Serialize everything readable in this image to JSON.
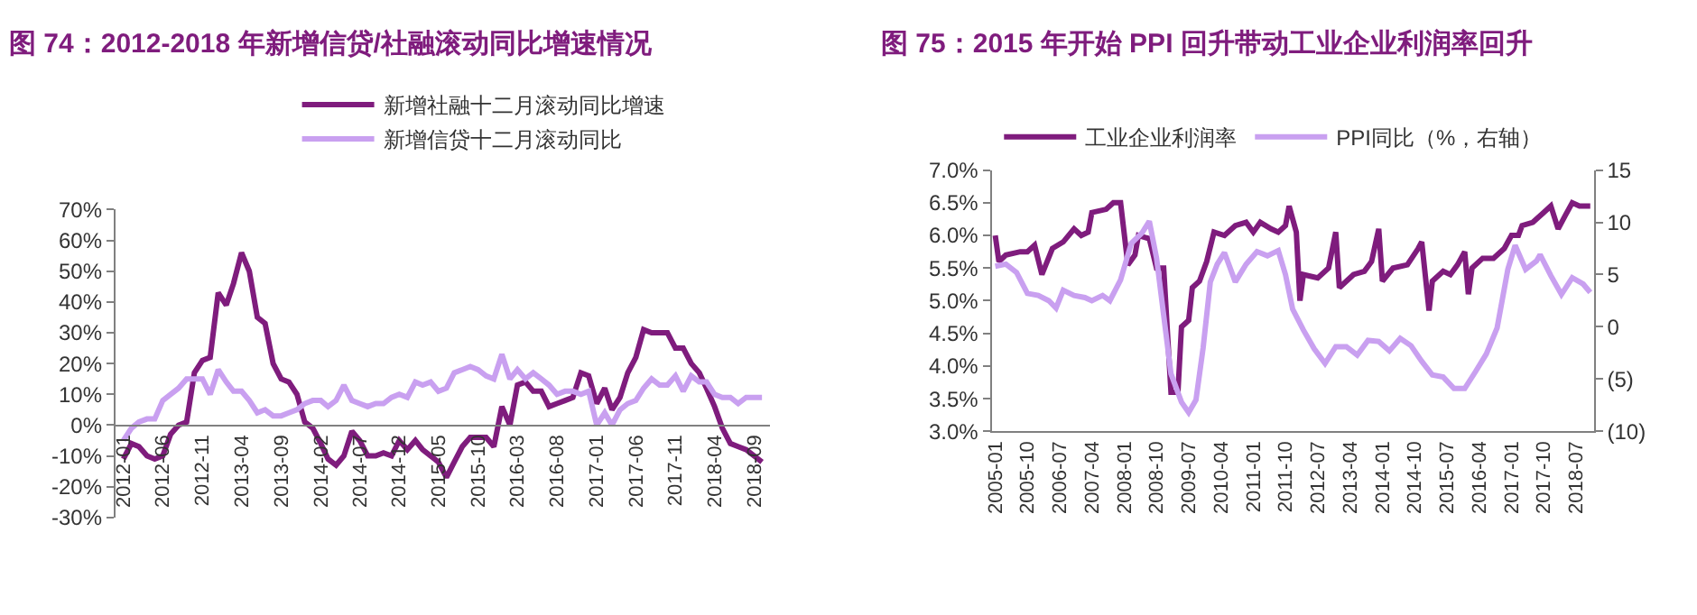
{
  "chart_data": [
    {
      "type": "line",
      "title": "图 74：2012-2018 年新增信贷/社融滚动同比增速情况",
      "legend": "top",
      "marker": "none",
      "line_style": "solid",
      "x": [
        "2012-01",
        "2012-02",
        "2012-03",
        "2012-04",
        "2012-05",
        "2012-06",
        "2012-07",
        "2012-08",
        "2012-09",
        "2012-10",
        "2012-11",
        "2012-12",
        "2013-01",
        "2013-02",
        "2013-03",
        "2013-04",
        "2013-05",
        "2013-06",
        "2013-07",
        "2013-08",
        "2013-09",
        "2013-10",
        "2013-11",
        "2013-12",
        "2014-01",
        "2014-02",
        "2014-03",
        "2014-04",
        "2014-05",
        "2014-06",
        "2014-07",
        "2014-08",
        "2014-09",
        "2014-10",
        "2014-11",
        "2014-12",
        "2015-01",
        "2015-02",
        "2015-03",
        "2015-04",
        "2015-05",
        "2015-06",
        "2015-07",
        "2015-08",
        "2015-09",
        "2015-10",
        "2015-11",
        "2015-12",
        "2016-01",
        "2016-02",
        "2016-03",
        "2016-04",
        "2016-05",
        "2016-06",
        "2016-07",
        "2016-08",
        "2016-09",
        "2016-10",
        "2016-11",
        "2016-12",
        "2017-01",
        "2017-02",
        "2017-03",
        "2017-04",
        "2017-05",
        "2017-06",
        "2017-07",
        "2017-08",
        "2017-09",
        "2017-10",
        "2017-11",
        "2017-12",
        "2018-01",
        "2018-02",
        "2018-03",
        "2018-04",
        "2018-05",
        "2018-06",
        "2018-07",
        "2018-08",
        "2018-09",
        "2018-10"
      ],
      "xlim": [
        "2011-12",
        "2018-11"
      ],
      "xticks": [
        {
          "value": "2012-01",
          "label": "2012-01"
        },
        {
          "value": "2012-06",
          "label": "2012-06"
        },
        {
          "value": "2012-11",
          "label": "2012-11"
        },
        {
          "value": "2013-04",
          "label": "2013-04"
        },
        {
          "value": "2013-09",
          "label": "2013-09"
        },
        {
          "value": "2014-02",
          "label": "2014-02"
        },
        {
          "value": "2014-07",
          "label": "2014-07"
        },
        {
          "value": "2014-12",
          "label": "2014-12"
        },
        {
          "value": "2015-05",
          "label": "2015-05"
        },
        {
          "value": "2015-10",
          "label": "2015-10"
        },
        {
          "value": "2016-03",
          "label": "2016-03"
        },
        {
          "value": "2016-08",
          "label": "2016-08"
        },
        {
          "value": "2017-01",
          "label": "2017-01"
        },
        {
          "value": "2017-06",
          "label": "2017-06"
        },
        {
          "value": "2017-11",
          "label": "2017-11"
        },
        {
          "value": "2018-04",
          "label": "2018-04"
        },
        {
          "value": "2018-09",
          "label": "2018-09"
        }
      ],
      "ylim": [
        -30,
        70
      ],
      "yticks": [
        {
          "value": -30,
          "label": "-30%"
        },
        {
          "value": -20,
          "label": "-20%"
        },
        {
          "value": -10,
          "label": "-10%"
        },
        {
          "value": 0,
          "label": "0%"
        },
        {
          "value": 10,
          "label": "10%"
        },
        {
          "value": 20,
          "label": "20%"
        },
        {
          "value": 30,
          "label": "30%"
        },
        {
          "value": 40,
          "label": "40%"
        },
        {
          "value": 50,
          "label": "50%"
        },
        {
          "value": 60,
          "label": "60%"
        },
        {
          "value": 70,
          "label": "70%"
        }
      ],
      "series": [
        {
          "name": "新增社融十二月滚动同比增速",
          "color": "#7f1c7d",
          "values": [
            -11,
            -6,
            -7,
            -10,
            -11,
            -10,
            -3,
            0,
            1,
            17,
            21,
            22,
            43,
            39,
            46,
            56,
            50,
            35,
            33,
            20,
            15,
            14,
            10,
            1,
            -1,
            -6,
            -11,
            -13,
            -10,
            -2,
            -5,
            -10,
            -10,
            -9,
            -10,
            -5,
            -8,
            -5,
            -8,
            -10,
            -12,
            -17,
            -12,
            -7,
            -4,
            -4,
            -4,
            -7,
            6,
            0,
            13,
            14,
            11,
            11,
            6,
            7,
            8,
            9,
            17,
            16,
            7,
            12,
            5,
            9,
            17,
            22,
            31,
            30,
            30,
            30,
            25,
            25,
            20,
            17,
            12,
            6,
            -1,
            -6,
            -7,
            -8,
            -10,
            -12
          ]
        },
        {
          "name": "新增信贷十二月滚动同比",
          "color": "#c9a0f0",
          "values": [
            -5,
            -1,
            1,
            2,
            2,
            8,
            10,
            12,
            15,
            15,
            15,
            10,
            18,
            14,
            11,
            11,
            8,
            4,
            5,
            3,
            3,
            4,
            5,
            7,
            8,
            8,
            6,
            8,
            13,
            8,
            7,
            6,
            7,
            7,
            9,
            10,
            9,
            14,
            13,
            14,
            11,
            12,
            17,
            18,
            19,
            18,
            16,
            15,
            23,
            15,
            18,
            15,
            17,
            15,
            13,
            10,
            11,
            11,
            10,
            11,
            0,
            4,
            0,
            5,
            7,
            8,
            12,
            15,
            13,
            13,
            16,
            11,
            16,
            14,
            14,
            10,
            9,
            9,
            7,
            9,
            9,
            9
          ]
        }
      ]
    },
    {
      "type": "line",
      "title": "图 75：2015 年开始 PPI 回升带动工业企业利润率回升",
      "legend": "top",
      "marker": "none",
      "line_style": "solid",
      "xlim": [
        "2004-12",
        "2018-12"
      ],
      "xticks": [
        {
          "value": "2005-01",
          "label": "2005-01"
        },
        {
          "value": "2005-10",
          "label": "2005-10"
        },
        {
          "value": "2006-07",
          "label": "2006-07"
        },
        {
          "value": "2007-04",
          "label": "2007-04"
        },
        {
          "value": "2008-01",
          "label": "2008-01"
        },
        {
          "value": "2008-10",
          "label": "2008-10"
        },
        {
          "value": "2009-07",
          "label": "2009-07"
        },
        {
          "value": "2010-04",
          "label": "2010-04"
        },
        {
          "value": "2011-01",
          "label": "2011-01"
        },
        {
          "value": "2011-10",
          "label": "2011-10"
        },
        {
          "value": "2012-07",
          "label": "2012-07"
        },
        {
          "value": "2013-04",
          "label": "2013-04"
        },
        {
          "value": "2014-01",
          "label": "2014-01"
        },
        {
          "value": "2014-10",
          "label": "2014-10"
        },
        {
          "value": "2015-07",
          "label": "2015-07"
        },
        {
          "value": "2016-04",
          "label": "2016-04"
        },
        {
          "value": "2017-01",
          "label": "2017-01"
        },
        {
          "value": "2017-10",
          "label": "2017-10"
        },
        {
          "value": "2018-07",
          "label": "2018-07"
        }
      ],
      "ylim": [
        3.0,
        7.0
      ],
      "yticks": [
        {
          "value": 3.0,
          "label": "3.0%"
        },
        {
          "value": 3.5,
          "label": "3.5%"
        },
        {
          "value": 4.0,
          "label": "4.0%"
        },
        {
          "value": 4.5,
          "label": "4.5%"
        },
        {
          "value": 5.0,
          "label": "5.0%"
        },
        {
          "value": 5.5,
          "label": "5.5%"
        },
        {
          "value": 6.0,
          "label": "6.0%"
        },
        {
          "value": 6.5,
          "label": "6.5%"
        },
        {
          "value": 7.0,
          "label": "7.0%"
        }
      ],
      "y2lim": [
        -10,
        15
      ],
      "y2ticks": [
        {
          "value": -10,
          "label": "(10)"
        },
        {
          "value": -5,
          "label": "(5)"
        },
        0,
        5,
        10,
        15
      ],
      "series": [
        {
          "name": "工业企业利润率",
          "color": "#7f1c7d",
          "x": [
            "2005-01",
            "2005-02",
            "2005-04",
            "2005-08",
            "2005-10",
            "2005-12",
            "2006-02",
            "2006-05",
            "2006-08",
            "2006-11",
            "2007-01",
            "2007-03",
            "2007-04",
            "2007-08",
            "2007-10",
            "2007-12",
            "2008-02",
            "2008-04",
            "2008-05",
            "2008-08",
            "2008-10",
            "2008-12",
            "2009-02",
            "2009-04",
            "2009-05",
            "2009-07",
            "2009-08",
            "2009-10",
            "2009-12",
            "2010-02",
            "2010-05",
            "2010-08",
            "2010-11",
            "2011-01",
            "2011-03",
            "2011-06",
            "2011-08",
            "2011-10",
            "2011-11",
            "2012-01",
            "2012-02",
            "2012-03",
            "2012-07",
            "2012-10",
            "2012-12",
            "2013-01",
            "2013-05",
            "2013-08",
            "2013-10",
            "2013-12",
            "2014-01",
            "2014-04",
            "2014-08",
            "2014-11",
            "2014-12",
            "2015-02",
            "2015-03",
            "2015-06",
            "2015-08",
            "2015-10",
            "2015-12",
            "2016-01",
            "2016-02",
            "2016-05",
            "2016-08",
            "2016-11",
            "2017-01",
            "2017-03",
            "2017-04",
            "2017-07",
            "2017-10",
            "2017-12",
            "2018-02",
            "2018-04",
            "2018-06",
            "2018-08",
            "2018-11"
          ],
          "values": [
            6.0,
            5.6,
            5.7,
            5.75,
            5.75,
            5.85,
            5.4,
            5.8,
            5.9,
            6.1,
            6.0,
            6.05,
            6.35,
            6.4,
            6.5,
            6.5,
            5.55,
            5.7,
            6.0,
            5.95,
            5.5,
            5.5,
            3.6,
            3.6,
            4.6,
            4.7,
            5.2,
            5.3,
            5.6,
            6.05,
            6.0,
            6.15,
            6.2,
            6.05,
            6.2,
            6.1,
            6.05,
            6.15,
            6.45,
            6.05,
            5.0,
            5.4,
            5.35,
            5.5,
            6.05,
            5.2,
            5.4,
            5.45,
            5.6,
            6.1,
            5.3,
            5.5,
            5.55,
            5.8,
            5.9,
            4.85,
            5.3,
            5.45,
            5.4,
            5.55,
            5.75,
            5.1,
            5.5,
            5.65,
            5.65,
            5.8,
            6.0,
            6.0,
            6.15,
            6.2,
            6.35,
            6.45,
            6.1,
            6.3,
            6.5,
            6.45,
            6.45
          ]
        },
        {
          "name": "PPI同比（%，右轴）",
          "color": "#c9a0f0",
          "axis": "y2",
          "x": [
            "2005-01",
            "2005-04",
            "2005-07",
            "2005-10",
            "2006-01",
            "2006-04",
            "2006-06",
            "2006-08",
            "2006-11",
            "2007-02",
            "2007-04",
            "2007-07",
            "2007-09",
            "2007-12",
            "2008-03",
            "2008-06",
            "2008-08",
            "2008-10",
            "2008-12",
            "2009-02",
            "2009-05",
            "2009-07",
            "2009-09",
            "2009-11",
            "2010-01",
            "2010-03",
            "2010-05",
            "2010-08",
            "2010-11",
            "2011-02",
            "2011-05",
            "2011-08",
            "2011-10",
            "2011-12",
            "2012-03",
            "2012-06",
            "2012-09",
            "2012-12",
            "2013-03",
            "2013-06",
            "2013-09",
            "2013-12",
            "2014-03",
            "2014-06",
            "2014-09",
            "2014-12",
            "2015-03",
            "2015-06",
            "2015-09",
            "2015-12",
            "2016-03",
            "2016-06",
            "2016-09",
            "2016-12",
            "2017-02",
            "2017-05",
            "2017-08",
            "2017-09",
            "2017-12",
            "2018-03",
            "2018-06",
            "2018-09",
            "2018-11"
          ],
          "values": [
            5.8,
            6,
            5.2,
            3.2,
            3,
            2.5,
            1.8,
            3.5,
            3,
            2.8,
            2.5,
            3,
            2.5,
            4.5,
            8,
            9,
            10.1,
            6.6,
            1.1,
            -4.5,
            -7.2,
            -8.2,
            -7,
            -2,
            4.3,
            6,
            7.1,
            4.3,
            6,
            7.2,
            6.8,
            7.3,
            5,
            1.7,
            -0.3,
            -2.1,
            -3.5,
            -1.9,
            -1.9,
            -2.7,
            -1.3,
            -1.4,
            -2.3,
            -1.1,
            -1.8,
            -3.3,
            -4.6,
            -4.8,
            -5.9,
            -5.9,
            -4.3,
            -2.6,
            -0.1,
            5.5,
            7.8,
            5.5,
            6.3,
            6.9,
            4.9,
            3.1,
            4.7,
            4.1,
            3.3
          ]
        }
      ]
    }
  ]
}
